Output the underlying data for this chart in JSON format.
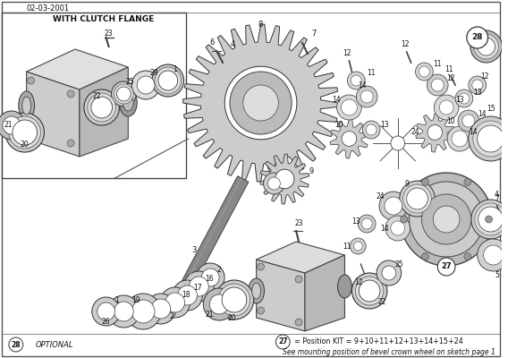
{
  "title_date": "02-03-2001",
  "inset_label": "WITH CLUTCH FLANGE",
  "bottom_right_text1": "= Position KIT = 9+10+11+12+13+14+15+24",
  "bottom_right_text2": "See mounting position of bevel crown wheel on sketch page 1",
  "bg_color": "#f0f0f0",
  "border_color": "#555555",
  "line_color": "#333333",
  "text_color": "#111111",
  "fig_width": 5.68,
  "fig_height": 4.0,
  "dpi": 100
}
